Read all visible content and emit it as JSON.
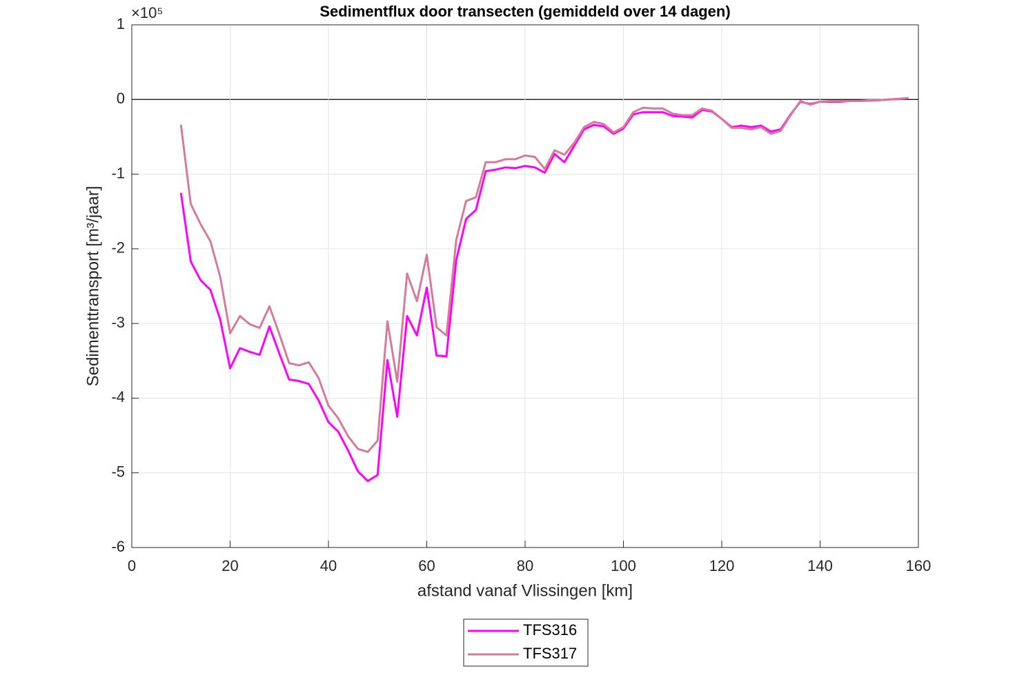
{
  "chart_data": {
    "type": "line",
    "title": "Sedimentflux door transecten (gemiddeld over 14 dagen)",
    "xlabel": "afstand vanaf Vlissingen [km]",
    "ylabel": "Sedimenttransport [m³/jaar]",
    "y_multiplier": "×10⁵",
    "x": [
      10,
      12,
      14,
      16,
      18,
      20,
      22,
      24,
      26,
      28,
      30,
      32,
      34,
      36,
      38,
      40,
      42,
      44,
      46,
      48,
      50,
      52,
      54,
      56,
      58,
      60,
      62,
      64,
      66,
      68,
      70,
      72,
      74,
      76,
      78,
      80,
      82,
      84,
      86,
      88,
      90,
      92,
      94,
      96,
      98,
      100,
      102,
      104,
      106,
      108,
      110,
      112,
      114,
      116,
      118,
      120,
      122,
      124,
      126,
      128,
      130,
      132,
      134,
      136,
      138,
      140,
      142,
      144,
      146,
      148,
      150,
      152,
      154,
      156,
      158
    ],
    "series": [
      {
        "name": "TFS316",
        "color": "#ff00ff",
        "values": [
          -1.25,
          -2.17,
          -2.42,
          -2.55,
          -2.95,
          -3.6,
          -3.33,
          -3.38,
          -3.42,
          -3.04,
          -3.4,
          -3.75,
          -3.77,
          -3.81,
          -4.03,
          -4.32,
          -4.45,
          -4.7,
          -4.98,
          -5.11,
          -5.03,
          -3.49,
          -4.25,
          -2.9,
          -3.16,
          -2.52,
          -3.43,
          -3.44,
          -2.15,
          -1.6,
          -1.48,
          -0.96,
          -0.94,
          -0.91,
          -0.92,
          -0.89,
          -0.91,
          -0.98,
          -0.73,
          -0.84,
          -0.62,
          -0.4,
          -0.34,
          -0.36,
          -0.46,
          -0.39,
          -0.2,
          -0.17,
          -0.17,
          -0.17,
          -0.22,
          -0.23,
          -0.24,
          -0.14,
          -0.16,
          -0.26,
          -0.37,
          -0.35,
          -0.37,
          -0.35,
          -0.43,
          -0.4,
          -0.2,
          -0.03,
          -0.06,
          -0.03,
          -0.03,
          -0.03,
          -0.02,
          -0.02,
          -0.015,
          -0.01,
          0.0,
          0.005,
          0.02
        ]
      },
      {
        "name": "TFS317",
        "color": "#d67a9a",
        "values": [
          -0.34,
          -1.4,
          -1.67,
          -1.9,
          -2.38,
          -3.13,
          -2.9,
          -3.01,
          -3.06,
          -2.77,
          -3.14,
          -3.53,
          -3.56,
          -3.52,
          -3.73,
          -4.1,
          -4.27,
          -4.51,
          -4.68,
          -4.72,
          -4.57,
          -2.97,
          -3.78,
          -2.33,
          -2.7,
          -2.08,
          -3.05,
          -3.16,
          -1.88,
          -1.36,
          -1.31,
          -0.84,
          -0.84,
          -0.8,
          -0.8,
          -0.75,
          -0.77,
          -0.93,
          -0.68,
          -0.74,
          -0.58,
          -0.37,
          -0.3,
          -0.33,
          -0.44,
          -0.37,
          -0.17,
          -0.11,
          -0.12,
          -0.12,
          -0.19,
          -0.21,
          -0.21,
          -0.12,
          -0.15,
          -0.26,
          -0.38,
          -0.38,
          -0.4,
          -0.37,
          -0.46,
          -0.42,
          -0.21,
          -0.02,
          -0.07,
          -0.03,
          -0.02,
          -0.02,
          -0.02,
          -0.02,
          -0.01,
          -0.01,
          0.0,
          0.01,
          0.02
        ]
      }
    ],
    "xlim": [
      0,
      160
    ],
    "xticks": [
      0,
      20,
      40,
      60,
      80,
      100,
      120,
      140,
      160
    ],
    "ylim": [
      -6,
      1
    ],
    "yticks": [
      -6,
      -5,
      -4,
      -3,
      -2,
      -1,
      0,
      1
    ],
    "grid": true,
    "legend": "bottom"
  }
}
